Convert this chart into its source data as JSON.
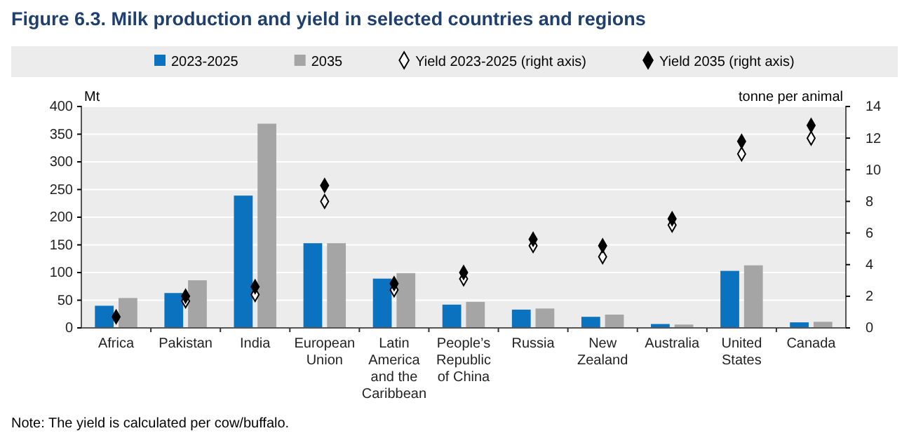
{
  "chart_data": {
    "type": "bar",
    "title": "Figure 6.3. Milk production and yield in selected countries and regions",
    "categories": [
      "Africa",
      "Pakistan",
      "India",
      "European Union",
      "Latin America and the Caribbean",
      "People’s Republic of China",
      "Russia",
      "New Zealand",
      "Australia",
      "United States",
      "Canada"
    ],
    "series": [
      {
        "name": "2023-2025",
        "color": "#0b72c0",
        "values": [
          40,
          63,
          239,
          153,
          89,
          42,
          33,
          20,
          7,
          103,
          10
        ]
      },
      {
        "name": "2035",
        "color": "#a5a5a5",
        "values": [
          54,
          86,
          369,
          153,
          99,
          47,
          35,
          24,
          6,
          113,
          11
        ]
      },
      {
        "name": "Yield 2023-2025 (right axis)",
        "type": "scatter",
        "axis": "y2",
        "marker": "diamond",
        "color": "#ffffff",
        "values": [
          null,
          1.7,
          2.1,
          8.0,
          2.4,
          3.1,
          5.2,
          4.5,
          6.5,
          11.0,
          12.0
        ]
      },
      {
        "name": "Yield 2035 (right axis)",
        "type": "scatter",
        "axis": "y2",
        "marker": "diamond",
        "color": "#000000",
        "values": [
          0.7,
          2.0,
          2.6,
          9.0,
          2.8,
          3.5,
          5.6,
          5.2,
          6.9,
          11.8,
          12.8
        ]
      }
    ],
    "ylabel": "Mt",
    "y2label": "tonne per animal",
    "ylim": [
      0,
      400
    ],
    "yticks": [
      0,
      50,
      100,
      150,
      200,
      250,
      300,
      350,
      400
    ],
    "y2lim": [
      0,
      14
    ],
    "y2ticks": [
      0,
      2,
      4,
      6,
      8,
      10,
      12,
      14
    ],
    "grid": "y",
    "legend": "top",
    "annotations": [
      "Note: The yield is calculated per cow/buffalo."
    ]
  }
}
